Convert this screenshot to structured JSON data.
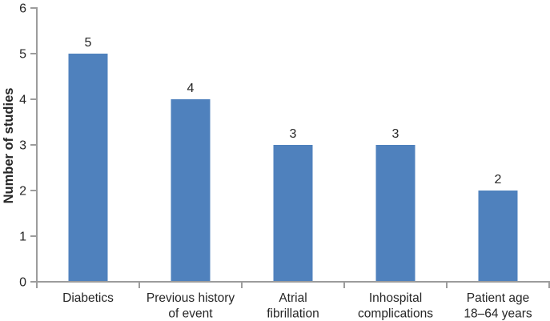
{
  "chart_data": {
    "type": "bar",
    "title": "",
    "xlabel": "",
    "ylabel": "Number of studies",
    "categories": [
      "Diabetics",
      "Previous history\nof event",
      "Atrial\nfibrillation",
      "Inhospital\ncomplications",
      "Patient age\n18–64 years"
    ],
    "values": [
      5,
      4,
      3,
      3,
      2
    ],
    "value_labels": [
      "5",
      "4",
      "3",
      "3",
      "2"
    ],
    "ylim": [
      0,
      6
    ],
    "yticks": [
      0,
      1,
      2,
      3,
      4,
      5,
      6
    ],
    "grid": false,
    "legend_position": "none",
    "bar_color": "#4F81BD",
    "axis_color": "#9C9C9C",
    "text_color": "#262626"
  }
}
